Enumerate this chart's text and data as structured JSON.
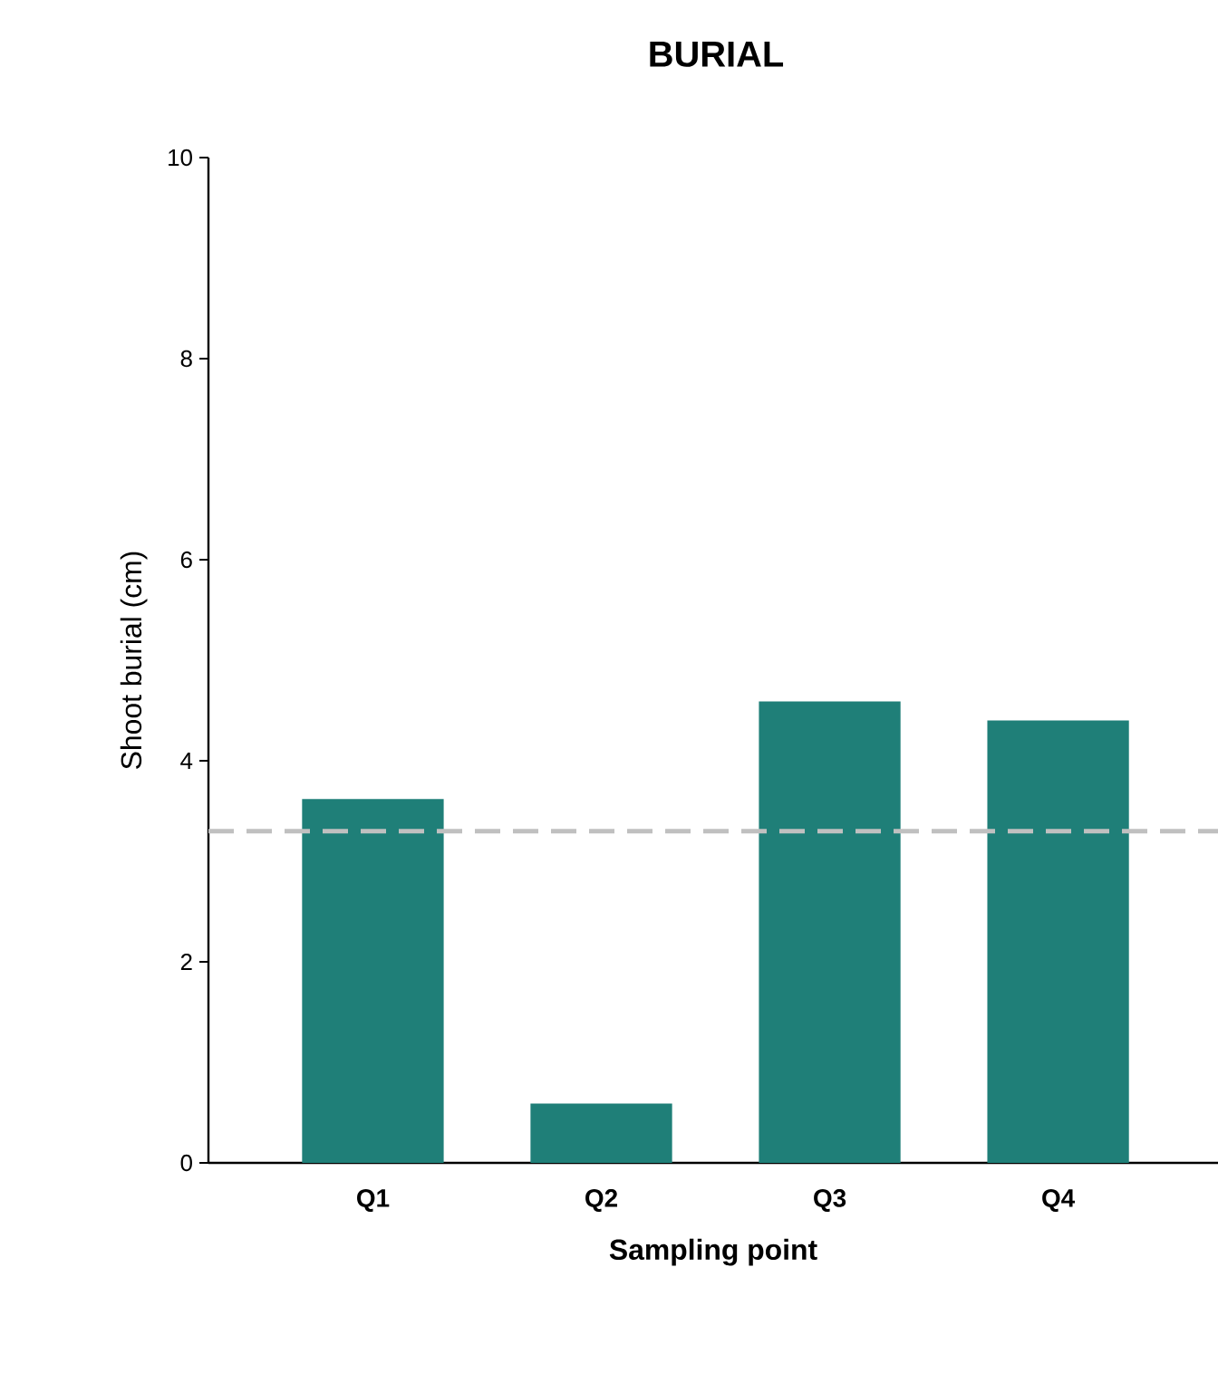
{
  "chart_data": {
    "type": "bar",
    "title": "BURIAL",
    "xlabel": "Sampling point",
    "ylabel": "Shoot burial (cm)",
    "categories": [
      "Q1",
      "Q2",
      "Q3",
      "Q4"
    ],
    "values": [
      3.62,
      0.59,
      4.59,
      4.4
    ],
    "color": "#1f7f78",
    "ylim": [
      0,
      10
    ],
    "yticks": [
      0,
      2,
      4,
      6,
      8,
      10
    ],
    "ref_lines": [
      {
        "axis": "y",
        "value": 3.3,
        "color": "#c0c0c0",
        "line_style": "dashed"
      }
    ]
  }
}
